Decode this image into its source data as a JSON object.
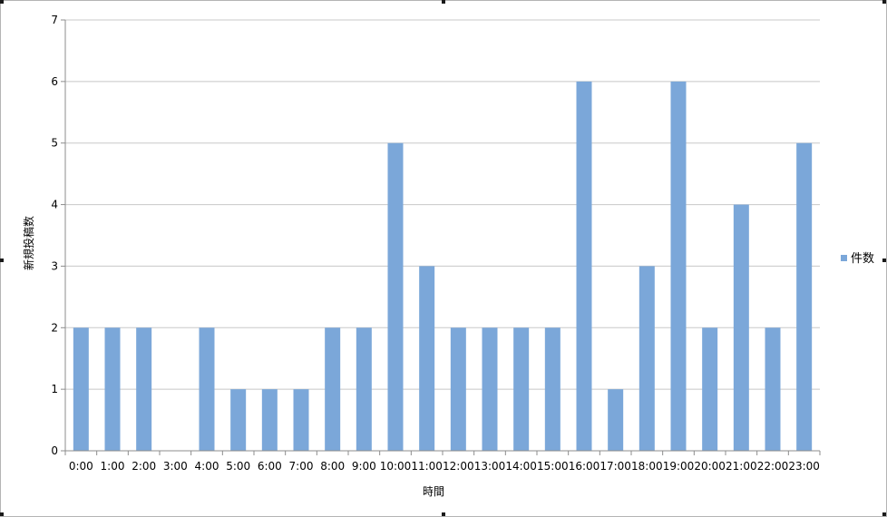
{
  "chart_data": {
    "type": "bar",
    "title": "",
    "xlabel": "時間",
    "ylabel": "新規投稿数",
    "ylim": [
      0,
      7
    ],
    "yticks": [
      0,
      1,
      2,
      3,
      4,
      5,
      6,
      7
    ],
    "grid": true,
    "legend_position": "right",
    "bar_color": "#7ba7d9",
    "categories": [
      "0:00",
      "1:00",
      "2:00",
      "3:00",
      "4:00",
      "5:00",
      "6:00",
      "7:00",
      "8:00",
      "9:00",
      "10:00",
      "11:00",
      "12:00",
      "13:00",
      "14:00",
      "15:00",
      "16:00",
      "17:00",
      "18:00",
      "19:00",
      "20:00",
      "21:00",
      "22:00",
      "23:00"
    ],
    "series": [
      {
        "name": "件数",
        "values": [
          2,
          2,
          2,
          0,
          2,
          1,
          1,
          1,
          2,
          2,
          5,
          3,
          2,
          2,
          2,
          2,
          6,
          1,
          3,
          6,
          2,
          4,
          2,
          5
        ]
      }
    ]
  }
}
